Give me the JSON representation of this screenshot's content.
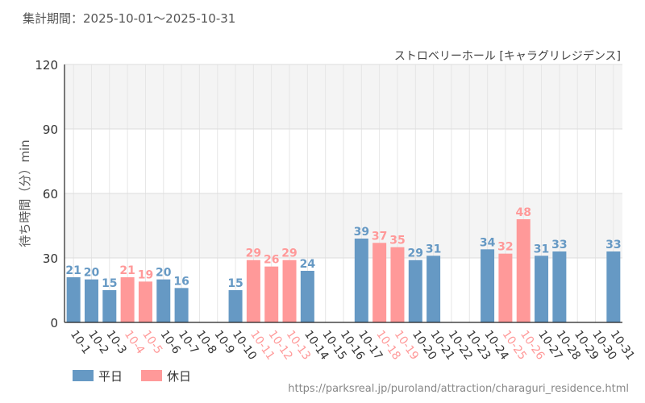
{
  "header": {
    "period_label": "集計期間：2025-10-01～2025-10-31"
  },
  "footer": {
    "source_url": "https://parksreal.jp/puroland/attraction/charaguri_residence.html"
  },
  "colors": {
    "weekday": "#6699c4",
    "holiday": "#ff9999",
    "band": "#f4f4f4",
    "grid": "#e6e6e6",
    "axis": "#222222",
    "text": "#444444"
  },
  "chart_data": {
    "type": "bar",
    "title": "ストロベリーホール [キャラグリレジデンス]",
    "xlabel": "",
    "ylabel": "待ち時間（分）min",
    "ylim": [
      0,
      120
    ],
    "yticks": [
      0,
      30,
      60,
      90,
      120
    ],
    "categories": [
      "10-1",
      "10-2",
      "10-3",
      "10-4",
      "10-5",
      "10-6",
      "10-7",
      "10-8",
      "10-9",
      "10-10",
      "10-11",
      "10-12",
      "10-13",
      "10-14",
      "10-15",
      "10-16",
      "10-17",
      "10-18",
      "10-19",
      "10-20",
      "10-21",
      "10-22",
      "10-23",
      "10-24",
      "10-25",
      "10-26",
      "10-27",
      "10-28",
      "10-29",
      "10-30",
      "10-31"
    ],
    "values": [
      21,
      20,
      15,
      21,
      19,
      20,
      16,
      null,
      null,
      15,
      29,
      26,
      29,
      24,
      null,
      null,
      39,
      37,
      35,
      29,
      31,
      null,
      null,
      34,
      32,
      48,
      31,
      33,
      null,
      null,
      33
    ],
    "day_type": [
      "weekday",
      "weekday",
      "weekday",
      "holiday",
      "holiday",
      "weekday",
      "weekday",
      "weekday",
      "weekday",
      "weekday",
      "holiday",
      "holiday",
      "holiday",
      "weekday",
      "weekday",
      "weekday",
      "weekday",
      "holiday",
      "holiday",
      "weekday",
      "weekday",
      "weekday",
      "weekday",
      "weekday",
      "holiday",
      "holiday",
      "weekday",
      "weekday",
      "weekday",
      "weekday",
      "weekday"
    ],
    "legend": [
      {
        "key": "weekday",
        "label": "平日"
      },
      {
        "key": "holiday",
        "label": "休日"
      }
    ],
    "legend_position": "bottom-left"
  }
}
